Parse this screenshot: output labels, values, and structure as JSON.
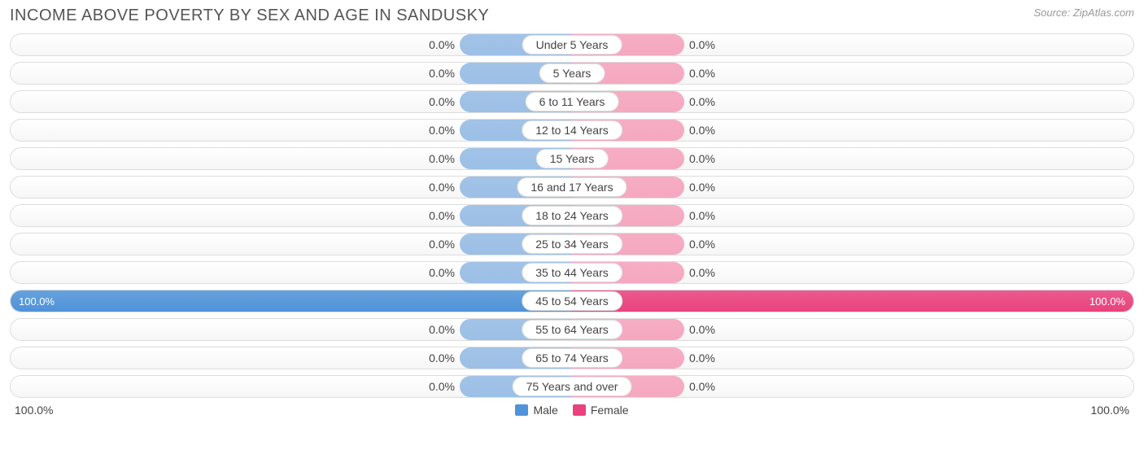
{
  "title": "INCOME ABOVE POVERTY BY SEX AND AGE IN SANDUSKY",
  "source": "Source: ZipAtlas.com",
  "axis_left": "100.0%",
  "axis_right": "100.0%",
  "legend": {
    "male": "Male",
    "female": "Female"
  },
  "colors": {
    "male_full": "#4f93d8",
    "male_small": "#9cbfe6",
    "female_full": "#e9427c",
    "female_small": "#f5a8c0",
    "row_border": "#dddddd",
    "text": "#444444",
    "title_text": "#555555",
    "source_text": "#999999",
    "background": "#ffffff"
  },
  "chart": {
    "type": "diverging_bar",
    "min_bar_pct": 20,
    "rows": [
      {
        "label": "Under 5 Years",
        "male": 0.0,
        "female": 0.0
      },
      {
        "label": "5 Years",
        "male": 0.0,
        "female": 0.0
      },
      {
        "label": "6 to 11 Years",
        "male": 0.0,
        "female": 0.0
      },
      {
        "label": "12 to 14 Years",
        "male": 0.0,
        "female": 0.0
      },
      {
        "label": "15 Years",
        "male": 0.0,
        "female": 0.0
      },
      {
        "label": "16 and 17 Years",
        "male": 0.0,
        "female": 0.0
      },
      {
        "label": "18 to 24 Years",
        "male": 0.0,
        "female": 0.0
      },
      {
        "label": "25 to 34 Years",
        "male": 0.0,
        "female": 0.0
      },
      {
        "label": "35 to 44 Years",
        "male": 0.0,
        "female": 0.0
      },
      {
        "label": "45 to 54 Years",
        "male": 100.0,
        "female": 100.0
      },
      {
        "label": "55 to 64 Years",
        "male": 0.0,
        "female": 0.0
      },
      {
        "label": "65 to 74 Years",
        "male": 0.0,
        "female": 0.0
      },
      {
        "label": "75 Years and over",
        "male": 0.0,
        "female": 0.0
      }
    ]
  }
}
